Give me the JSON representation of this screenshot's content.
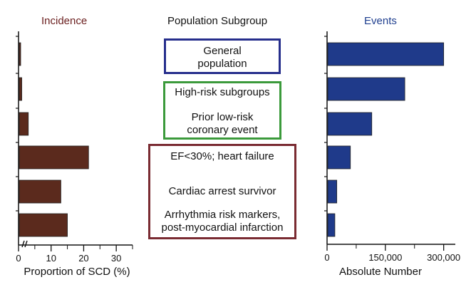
{
  "headers": {
    "incidence": "Incidence",
    "subgroup": "Population Subgroup",
    "events": "Events"
  },
  "colors": {
    "incidence_bar": "#5b2a1d",
    "events_bar": "#1f3a8a",
    "incidence_header": "#6b2020",
    "events_header": "#1f3f8f",
    "box_general": "#262e8c",
    "box_highrisk": "#3b9a3b",
    "box_severe": "#7a2b32"
  },
  "subgroups": {
    "general": [
      "General",
      "population"
    ],
    "high_risk": "High-risk subgroups",
    "prior_event": [
      "Prior low-risk",
      "coronary event"
    ],
    "ef": "EF<30%; heart failure",
    "arrest": "Cardiac arrest survivor",
    "arrhythmia": [
      "Arrhythmia risk markers,",
      "post-myocardial infarction"
    ]
  },
  "chart_data": [
    {
      "type": "bar",
      "orientation": "horizontal",
      "title": "Incidence",
      "xlabel": "Proportion of SCD (%)",
      "xlim": [
        0,
        35
      ],
      "xticks": [
        "0",
        "10",
        "20",
        "30"
      ],
      "axis_break": true,
      "categories": [
        "General population",
        "High-risk subgroups",
        "Prior low-risk coronary event",
        "EF<30%; heart failure",
        "Cardiac arrest survivor",
        "Arrhythmia risk markers, post-myocardial infarction"
      ],
      "values": [
        0.5,
        1,
        3,
        21.5,
        13,
        15
      ]
    },
    {
      "type": "bar",
      "orientation": "horizontal",
      "title": "Events",
      "xlabel": "Absolute Number",
      "xlim": [
        0,
        330000
      ],
      "xticks": [
        "0",
        "150,000",
        "300,000"
      ],
      "categories": [
        "General population",
        "High-risk subgroups",
        "Prior low-risk coronary event",
        "EF<30%; heart failure",
        "Cardiac arrest survivor",
        "Arrhythmia risk markers, post-myocardial infarction"
      ],
      "values": [
        300000,
        200000,
        115000,
        60000,
        25000,
        20000
      ]
    }
  ]
}
